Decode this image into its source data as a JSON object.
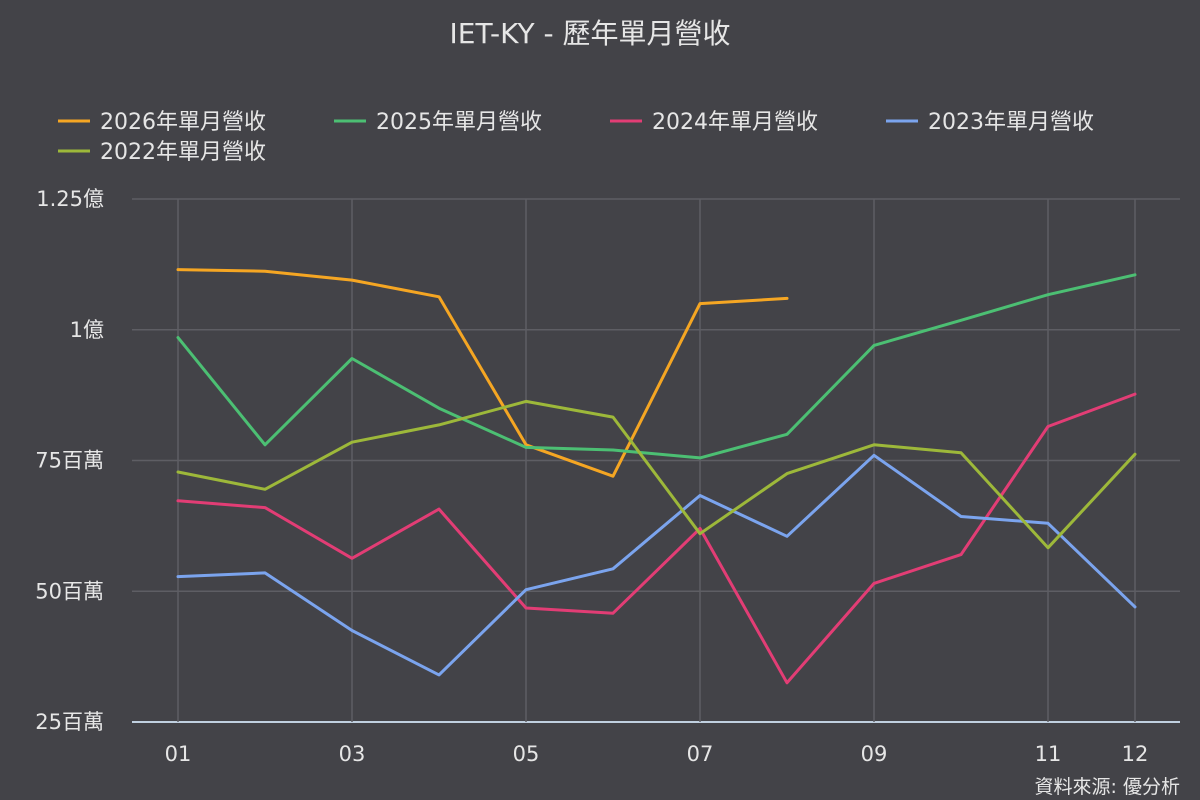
{
  "chart_data": {
    "type": "line",
    "title": "IET-KY - 歷年單月營收",
    "credit": "資料來源: 優分析",
    "x": [
      "01",
      "02",
      "03",
      "04",
      "05",
      "06",
      "07",
      "08",
      "09",
      "10",
      "11",
      "12"
    ],
    "x_tick_labels": [
      "01",
      "03",
      "05",
      "07",
      "09",
      "11",
      "12"
    ],
    "y_range": [
      25000000,
      125000000
    ],
    "y_ticks": [
      {
        "value": 25000000,
        "label": "25百萬"
      },
      {
        "value": 50000000,
        "label": "50百萬"
      },
      {
        "value": 75000000,
        "label": "75百萬"
      },
      {
        "value": 100000000,
        "label": "1億"
      },
      {
        "value": 125000000,
        "label": "1.25億"
      }
    ],
    "grid": true,
    "legend_position": "top",
    "series": [
      {
        "name": "2026年單月營收",
        "color": "#f5a623",
        "values": [
          111500000,
          111200000,
          109500000,
          106300000,
          78000000,
          72000000,
          105000000,
          106000000,
          null,
          null,
          null,
          null
        ]
      },
      {
        "name": "2025年單月營收",
        "color": "#4cbf73",
        "values": [
          98500000,
          78000000,
          94500000,
          85000000,
          77500000,
          77000000,
          75500000,
          80000000,
          97000000,
          101800000,
          106700000,
          110500000
        ]
      },
      {
        "name": "2024年單月營收",
        "color": "#e23d75",
        "values": [
          67300000,
          66000000,
          56300000,
          65700000,
          46800000,
          45800000,
          62000000,
          32500000,
          51500000,
          57000000,
          81500000,
          87700000
        ]
      },
      {
        "name": "2023年單月營收",
        "color": "#7ba4ee",
        "values": [
          52800000,
          53500000,
          42500000,
          34000000,
          50300000,
          54300000,
          68300000,
          60500000,
          76000000,
          64300000,
          63000000,
          47000000
        ]
      },
      {
        "name": "2022年單月營收",
        "color": "#9db83a",
        "values": [
          72800000,
          69500000,
          78500000,
          81800000,
          86300000,
          83300000,
          61000000,
          72500000,
          78000000,
          76500000,
          58300000,
          76200000
        ]
      }
    ]
  }
}
